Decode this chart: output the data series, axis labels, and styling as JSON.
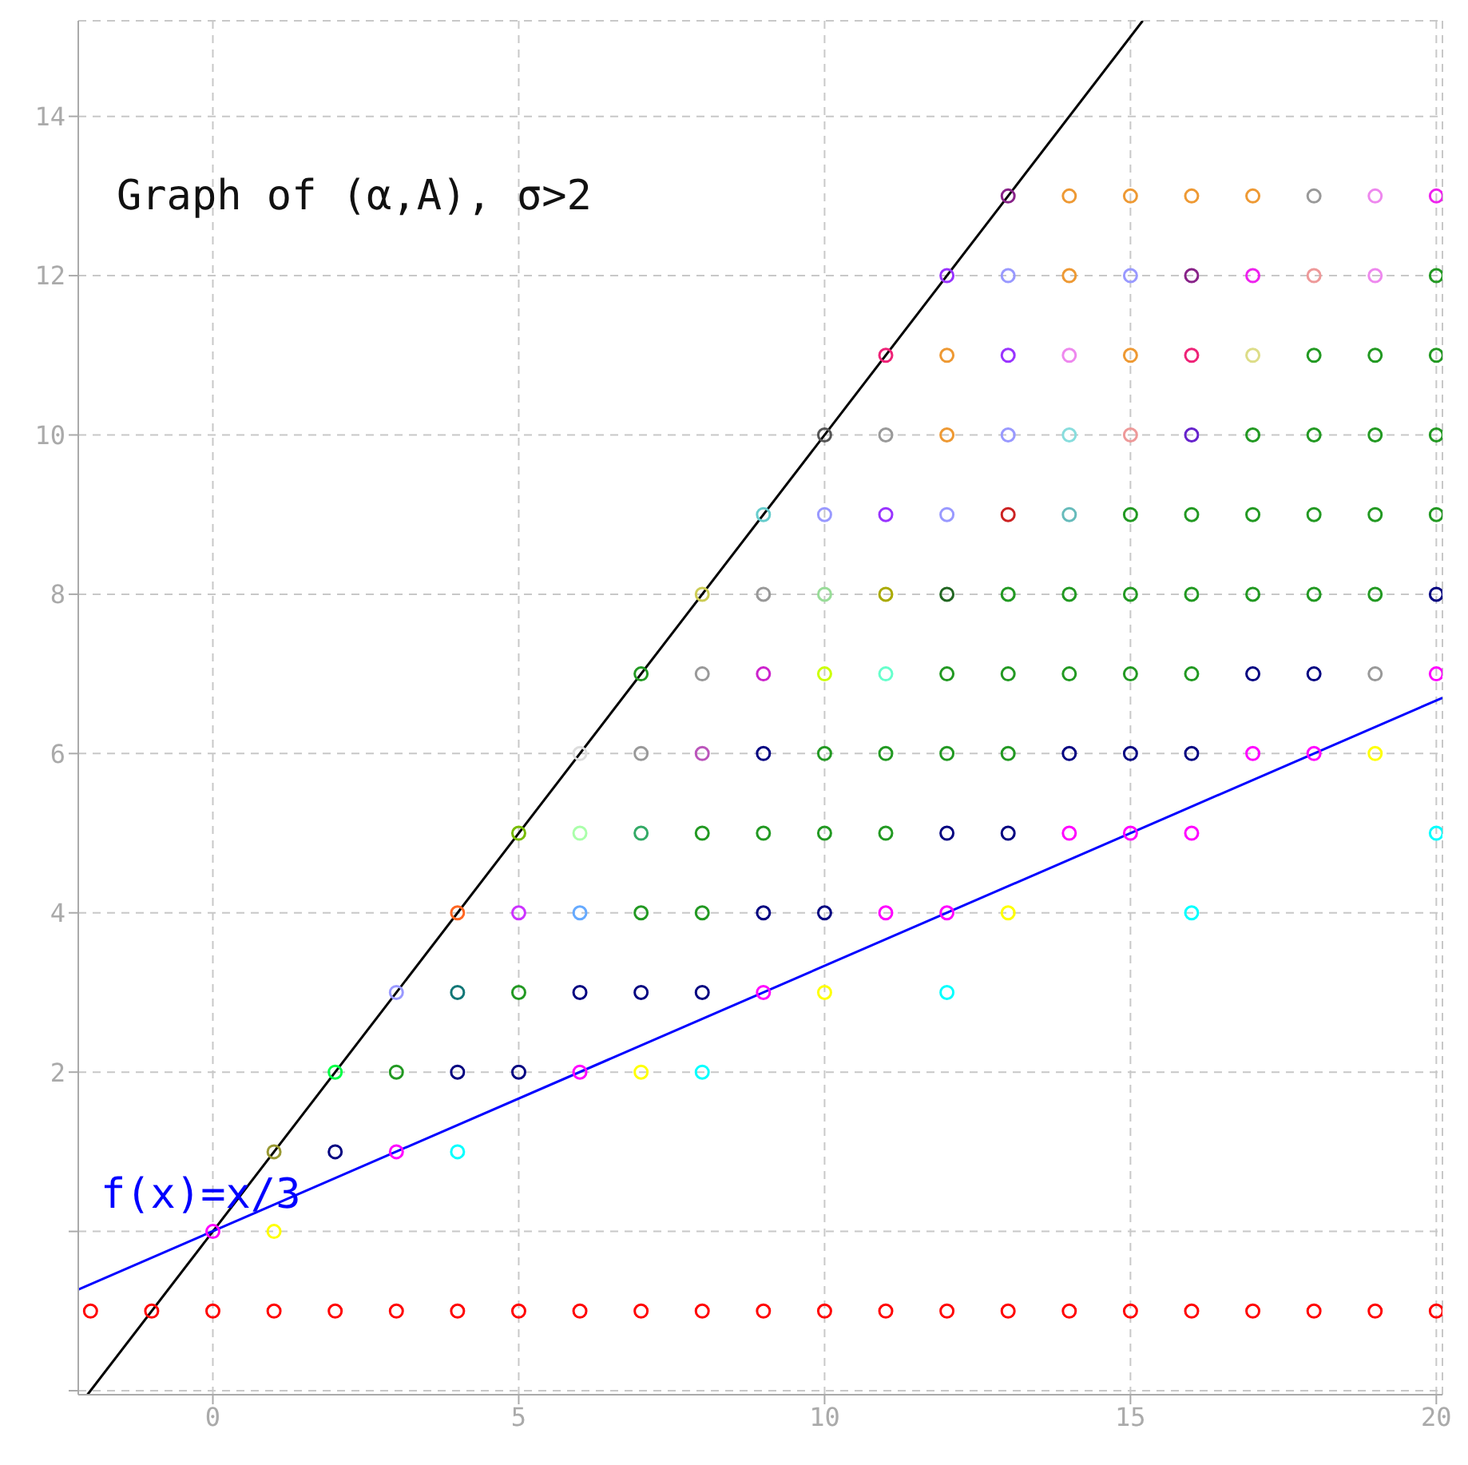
{
  "chart_data": {
    "type": "scatter",
    "title": "Graph of (α,A), σ>2",
    "marker": "circle",
    "grid": true,
    "xlim": [
      -2.2,
      20.1
    ],
    "ylim": [
      -2.05,
      15.2
    ],
    "xticks": [
      0,
      5,
      10,
      15,
      20
    ],
    "yticks": [
      {
        "value": -2,
        "label": null
      },
      {
        "value": 0,
        "label": null
      },
      2,
      4,
      6,
      8,
      10,
      12,
      14
    ],
    "annotations": [
      "f(x)=x/3"
    ],
    "series": [
      {
        "x": [
          -2,
          -1,
          0,
          1,
          2,
          3,
          4,
          5,
          6,
          7,
          8,
          9,
          10,
          11,
          12,
          13,
          14,
          15,
          16,
          17,
          18,
          19,
          20
        ],
        "values": [
          -1,
          -1,
          -1,
          -1,
          -1,
          -1,
          -1,
          -1,
          -1,
          -1,
          -1,
          -1,
          -1,
          -1,
          -1,
          -1,
          -1,
          -1,
          -1,
          -1,
          -1,
          -1,
          -1
        ],
        "colors": [
          "#ff0000",
          "#ff0000",
          "#ff0000",
          "#ff0000",
          "#ff0000",
          "#ff0000",
          "#ff0000",
          "#ff0000",
          "#ff0000",
          "#ff0000",
          "#ff0000",
          "#ff0000",
          "#ff0000",
          "#ff0000",
          "#ff0000",
          "#ff0000",
          "#ff0000",
          "#ff0000",
          "#ff0000",
          "#ff0000",
          "#ff0000",
          "#ff0000",
          "#ff0000"
        ]
      },
      {
        "type": "scatter",
        "x": [
          0,
          1
        ],
        "values": [
          0,
          0
        ],
        "colors": [
          "#ff00ff",
          "#ffff00"
        ]
      },
      {
        "type": "scatter",
        "x": [
          1,
          2,
          3,
          4
        ],
        "values": [
          1,
          1,
          1,
          1
        ],
        "colors": [
          "#999933",
          "#000080",
          "#ff00ff",
          "#00ffff"
        ]
      },
      {
        "type": "scatter",
        "x": [
          2,
          3,
          4,
          5,
          6,
          7,
          8
        ],
        "values": [
          2,
          2,
          2,
          2,
          2,
          2,
          2
        ],
        "colors": [
          "#00ff44",
          "#229922",
          "#000080",
          "#000080",
          "#ff00ff",
          "#ffff00",
          "#00ffff"
        ]
      },
      {
        "type": "scatter",
        "x": [
          3,
          4,
          5,
          6,
          7,
          8,
          9,
          10,
          12
        ],
        "values": [
          3,
          3,
          3,
          3,
          3,
          3,
          3,
          3,
          3
        ],
        "colors": [
          "#9999ff",
          "#117777",
          "#229922",
          "#000080",
          "#000080",
          "#000080",
          "#ff00ff",
          "#ffff00",
          "#00ffff"
        ]
      },
      {
        "type": "scatter",
        "x": [
          4,
          5,
          6,
          7,
          8,
          9,
          10,
          11,
          12,
          13,
          16
        ],
        "values": [
          4,
          4,
          4,
          4,
          4,
          4,
          4,
          4,
          4,
          4,
          4
        ],
        "colors": [
          "#ff6622",
          "#cc33ff",
          "#66aaff",
          "#229922",
          "#229922",
          "#000080",
          "#000080",
          "#ff00ff",
          "#ff00ff",
          "#ffff00",
          "#00ffff"
        ]
      },
      {
        "type": "scatter",
        "x": [
          5,
          6,
          7,
          8,
          9,
          10,
          11,
          12,
          13,
          14,
          15,
          16,
          20
        ],
        "values": [
          5,
          5,
          5,
          5,
          5,
          5,
          5,
          5,
          5,
          5,
          5,
          5,
          5
        ],
        "colors": [
          "#77bb00",
          "#aaffaa",
          "#33aa66",
          "#229922",
          "#229922",
          "#229922",
          "#229922",
          "#000080",
          "#000080",
          "#ff00ff",
          "#ff00ff",
          "#ff00ff",
          "#00ffff"
        ]
      },
      {
        "type": "scatter",
        "x": [
          6,
          7,
          8,
          9,
          10,
          11,
          12,
          13,
          14,
          15,
          16,
          17,
          18,
          19
        ],
        "values": [
          6,
          6,
          6,
          6,
          6,
          6,
          6,
          6,
          6,
          6,
          6,
          6,
          6,
          6
        ],
        "colors": [
          "#dddddd",
          "#999999",
          "#bb55bb",
          "#000080",
          "#229922",
          "#229922",
          "#229922",
          "#229922",
          "#000080",
          "#000080",
          "#000080",
          "#ff00ff",
          "#ff00ff",
          "#ffff00"
        ]
      },
      {
        "type": "scatter",
        "x": [
          7,
          8,
          9,
          10,
          11,
          12,
          13,
          14,
          15,
          16,
          17,
          18,
          19,
          20
        ],
        "values": [
          7,
          7,
          7,
          7,
          7,
          7,
          7,
          7,
          7,
          7,
          7,
          7,
          7,
          7
        ],
        "colors": [
          "#229922",
          "#999999",
          "#cc22cc",
          "#ccff00",
          "#66ffcc",
          "#229922",
          "#229922",
          "#229922",
          "#229922",
          "#229922",
          "#000080",
          "#000080",
          "#999999",
          "#ff00ff"
        ]
      },
      {
        "type": "scatter",
        "x": [
          8,
          9,
          10,
          11,
          12,
          13,
          14,
          15,
          16,
          17,
          18,
          19,
          20
        ],
        "values": [
          8,
          8,
          8,
          8,
          8,
          8,
          8,
          8,
          8,
          8,
          8,
          8,
          8
        ],
        "colors": [
          "#cccc55",
          "#999999",
          "#99dd99",
          "#aaaa00",
          "#226622",
          "#229922",
          "#229922",
          "#229922",
          "#229922",
          "#229922",
          "#229922",
          "#229922",
          "#000080"
        ]
      },
      {
        "type": "scatter",
        "x": [
          9,
          10,
          11,
          12,
          13,
          14,
          15,
          16,
          17,
          18,
          19,
          20
        ],
        "values": [
          9,
          9,
          9,
          9,
          9,
          9,
          9,
          9,
          9,
          9,
          9,
          9
        ],
        "colors": [
          "#66cccc",
          "#9999ff",
          "#9933ff",
          "#9999ff",
          "#cc2222",
          "#66bbbb",
          "#229922",
          "#229922",
          "#229922",
          "#229922",
          "#229922",
          "#229922"
        ]
      },
      {
        "type": "scatter",
        "x": [
          10,
          11,
          12,
          13,
          14,
          15,
          16,
          17,
          18,
          19,
          20
        ],
        "values": [
          10,
          10,
          10,
          10,
          10,
          10,
          10,
          10,
          10,
          10,
          10
        ],
        "colors": [
          "#555555",
          "#999999",
          "#ee9933",
          "#9999ff",
          "#88dddd",
          "#ee9999",
          "#6622cc",
          "#229922",
          "#229922",
          "#229922",
          "#229922"
        ]
      },
      {
        "type": "scatter",
        "x": [
          11,
          12,
          13,
          14,
          15,
          16,
          17,
          18,
          19,
          20
        ],
        "values": [
          11,
          11,
          11,
          11,
          11,
          11,
          11,
          11,
          11,
          11
        ],
        "colors": [
          "#ee2277",
          "#ee9933",
          "#9933ff",
          "#ee88ee",
          "#ee9933",
          "#ee2277",
          "#dddd88",
          "#229922",
          "#229922",
          "#229922"
        ]
      },
      {
        "type": "scatter",
        "x": [
          12,
          13,
          14,
          15,
          16,
          17,
          18,
          19,
          20
        ],
        "values": [
          12,
          12,
          12,
          12,
          12,
          12,
          12,
          12,
          12
        ],
        "colors": [
          "#9933ff",
          "#9999ff",
          "#ee9933",
          "#9999ff",
          "#882288",
          "#ee22ee",
          "#ee9999",
          "#ee88ee",
          "#229922"
        ]
      },
      {
        "type": "scatter",
        "x": [
          13,
          14,
          15,
          16,
          17,
          18,
          19,
          20
        ],
        "values": [
          13,
          13,
          13,
          13,
          13,
          13,
          13,
          13
        ],
        "colors": [
          "#882288",
          "#ee9933",
          "#ee9933",
          "#ee9933",
          "#ee9933",
          "#999999",
          "#ee88ee",
          "#ee22ee"
        ]
      },
      {
        "type": "line",
        "marker": "none",
        "x": [
          -2.05,
          15.2
        ],
        "values": [
          -2.05,
          15.2
        ],
        "color": "#000000"
      },
      {
        "type": "line",
        "marker": "none",
        "x": [
          -2.2,
          20.1
        ],
        "values": [
          -0.73,
          6.7
        ],
        "color": "#0000ff"
      }
    ]
  }
}
